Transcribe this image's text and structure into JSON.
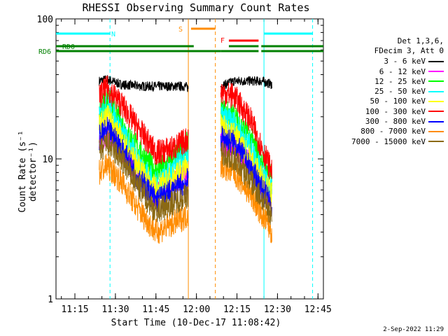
{
  "chart_data": {
    "type": "line",
    "title": "RHESSI Observing Summary Count Rates",
    "xlabel": "Start Time (10-Dec-17 11:08:42)",
    "ylabel": "Count Rate (s⁻¹ detector⁻¹)",
    "y_scale": "log",
    "ylim": [
      1,
      100
    ],
    "yticks": [
      "1",
      "10",
      "100"
    ],
    "xlim": [
      "11:08",
      "12:47"
    ],
    "xticks": [
      "11:15",
      "11:30",
      "11:45",
      "12:00",
      "12:15",
      "12:30",
      "12:45"
    ],
    "legend_header": [
      "Det 1,3,6,",
      "FDecim 3, Att 0"
    ],
    "legend_position": "right",
    "series": [
      {
        "name": "3 - 6 keV",
        "color": "#000000",
        "x": [
          "11:24",
          "11:27",
          "11:32",
          "11:40",
          "11:50",
          "11:56",
          "11:57",
          "12:09",
          "12:14",
          "12:24",
          "12:28"
        ],
        "values": [
          36,
          37,
          34,
          33,
          33,
          33,
          32,
          33,
          36,
          36,
          34
        ]
      },
      {
        "name": "6 - 12 keV",
        "color": "#ff00ff",
        "x": [
          "11:24",
          "11:27",
          "11:32",
          "11:38",
          "11:45",
          "11:52",
          "11:57",
          "12:09",
          "12:14",
          "12:20",
          "12:28"
        ],
        "values": [
          13,
          15,
          12,
          8,
          5.5,
          7,
          8,
          13,
          12,
          9,
          5
        ]
      },
      {
        "name": "12 - 25 keV",
        "color": "#00ff00",
        "x": [
          "11:24",
          "11:27",
          "11:32",
          "11:38",
          "11:45",
          "11:52",
          "11:57",
          "12:09",
          "12:14",
          "12:20",
          "12:28"
        ],
        "values": [
          22,
          27,
          18,
          12,
          8,
          10,
          13,
          22,
          20,
          14,
          7
        ]
      },
      {
        "name": "25 - 50 keV",
        "color": "#00ffff",
        "x": [
          "11:24",
          "11:27",
          "11:32",
          "11:38",
          "11:45",
          "11:52",
          "11:57",
          "12:09",
          "12:14",
          "12:20",
          "12:28"
        ],
        "values": [
          20,
          24,
          16,
          10,
          6.5,
          8.5,
          11,
          20,
          18,
          12,
          6
        ]
      },
      {
        "name": "50 - 100 keV",
        "color": "#ffff00",
        "x": [
          "11:24",
          "11:27",
          "11:32",
          "11:38",
          "11:45",
          "11:52",
          "11:57",
          "12:09",
          "12:14",
          "12:20",
          "12:28"
        ],
        "values": [
          17,
          20,
          14,
          9,
          6,
          7.5,
          9,
          17,
          15,
          10,
          5.5
        ]
      },
      {
        "name": "100 - 300 keV",
        "color": "#ff0000",
        "x": [
          "11:24",
          "11:27",
          "11:32",
          "11:38",
          "11:45",
          "11:52",
          "11:57",
          "12:09",
          "12:14",
          "12:20",
          "12:28"
        ],
        "values": [
          28,
          32,
          25,
          17,
          11,
          12,
          14,
          30,
          28,
          19,
          8
        ]
      },
      {
        "name": "300 - 800 keV",
        "color": "#0000ff",
        "x": [
          "11:24",
          "11:27",
          "11:32",
          "11:38",
          "11:45",
          "11:52",
          "11:57",
          "12:09",
          "12:14",
          "12:20",
          "12:28"
        ],
        "values": [
          14,
          16,
          12,
          7.5,
          5,
          6,
          7,
          14,
          13,
          8.5,
          4.5
        ]
      },
      {
        "name": "800 - 7000 keV",
        "color": "#ff8c00",
        "x": [
          "11:24",
          "11:27",
          "11:32",
          "11:38",
          "11:45",
          "11:52",
          "11:57",
          "12:09",
          "12:14",
          "12:20",
          "12:28"
        ],
        "values": [
          8,
          9,
          7,
          4.5,
          3,
          3.5,
          4,
          9,
          8,
          5.5,
          3
        ]
      },
      {
        "name": "7000 - 15000 keV",
        "color": "#8b6914",
        "x": [
          "11:24",
          "11:27",
          "11:32",
          "11:38",
          "11:45",
          "11:52",
          "11:57",
          "12:09",
          "12:14",
          "12:20",
          "12:28"
        ],
        "values": [
          11,
          13,
          10,
          6.5,
          4.2,
          5,
          5.5,
          11,
          10,
          7,
          4
        ]
      }
    ],
    "flags": [
      {
        "label": "N",
        "color": "#00ffff",
        "spans": [
          [
            "11:08",
            "11:28"
          ],
          [
            "12:25",
            "12:43"
          ]
        ]
      },
      {
        "label": "S",
        "color": "#ff8c00",
        "spans": [
          [
            "11:58",
            "12:07"
          ]
        ]
      },
      {
        "label": "F",
        "color": "#ff0000",
        "spans": [
          [
            "12:12",
            "12:23"
          ]
        ]
      },
      {
        "label": "RD0",
        "color": "#008000",
        "spans": [
          [
            "11:08",
            "11:39"
          ],
          [
            "11:38",
            "11:59"
          ],
          [
            "12:12",
            "12:23"
          ],
          [
            "12:24",
            "12:47"
          ]
        ]
      },
      {
        "label": "RD6",
        "color": "#008000",
        "spans": [
          [
            "11:08",
            "11:39"
          ],
          [
            "11:38",
            "12:09"
          ],
          [
            "12:09",
            "12:23"
          ],
          [
            "12:24",
            "12:47"
          ]
        ]
      }
    ],
    "vlines": [
      {
        "time": "11:28",
        "color": "#00ffff",
        "style": "dashed"
      },
      {
        "time": "11:57",
        "color": "#ff8c00",
        "style": "solid"
      },
      {
        "time": "12:07",
        "color": "#ff8c00",
        "style": "dashed"
      },
      {
        "time": "12:25",
        "color": "#00ffff",
        "style": "solid"
      },
      {
        "time": "12:43",
        "color": "#00ffff",
        "style": "dashed"
      }
    ]
  },
  "footer_timestamp": "2-Sep-2022 11:29"
}
